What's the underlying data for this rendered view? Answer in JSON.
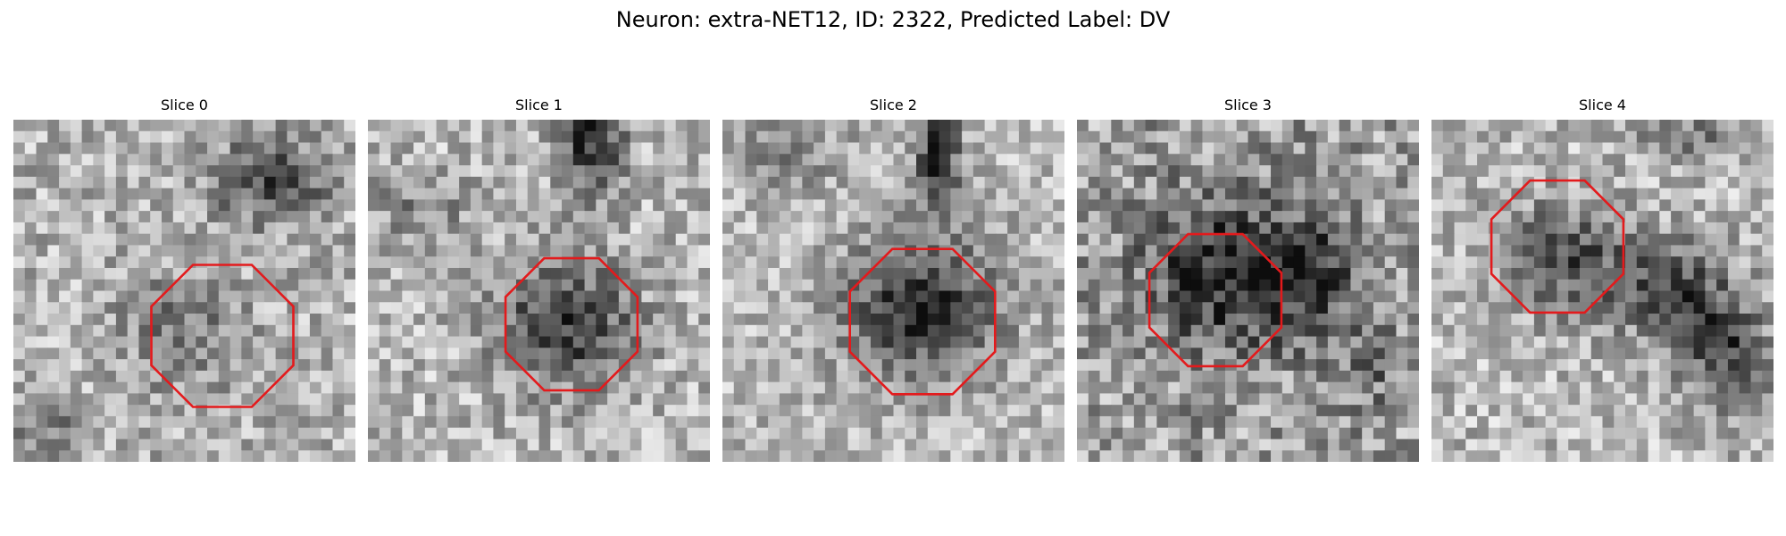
{
  "figure": {
    "title": "Neuron: extra-NET12, ID: 2322, Predicted Label: DV"
  },
  "panels": [
    {
      "title": "Slice 0"
    },
    {
      "title": "Slice 1"
    },
    {
      "title": "Slice 2"
    },
    {
      "title": "Slice 3"
    },
    {
      "title": "Slice 4"
    }
  ],
  "colors": {
    "outline": "#e31a1c",
    "background": "#ffffff"
  }
}
